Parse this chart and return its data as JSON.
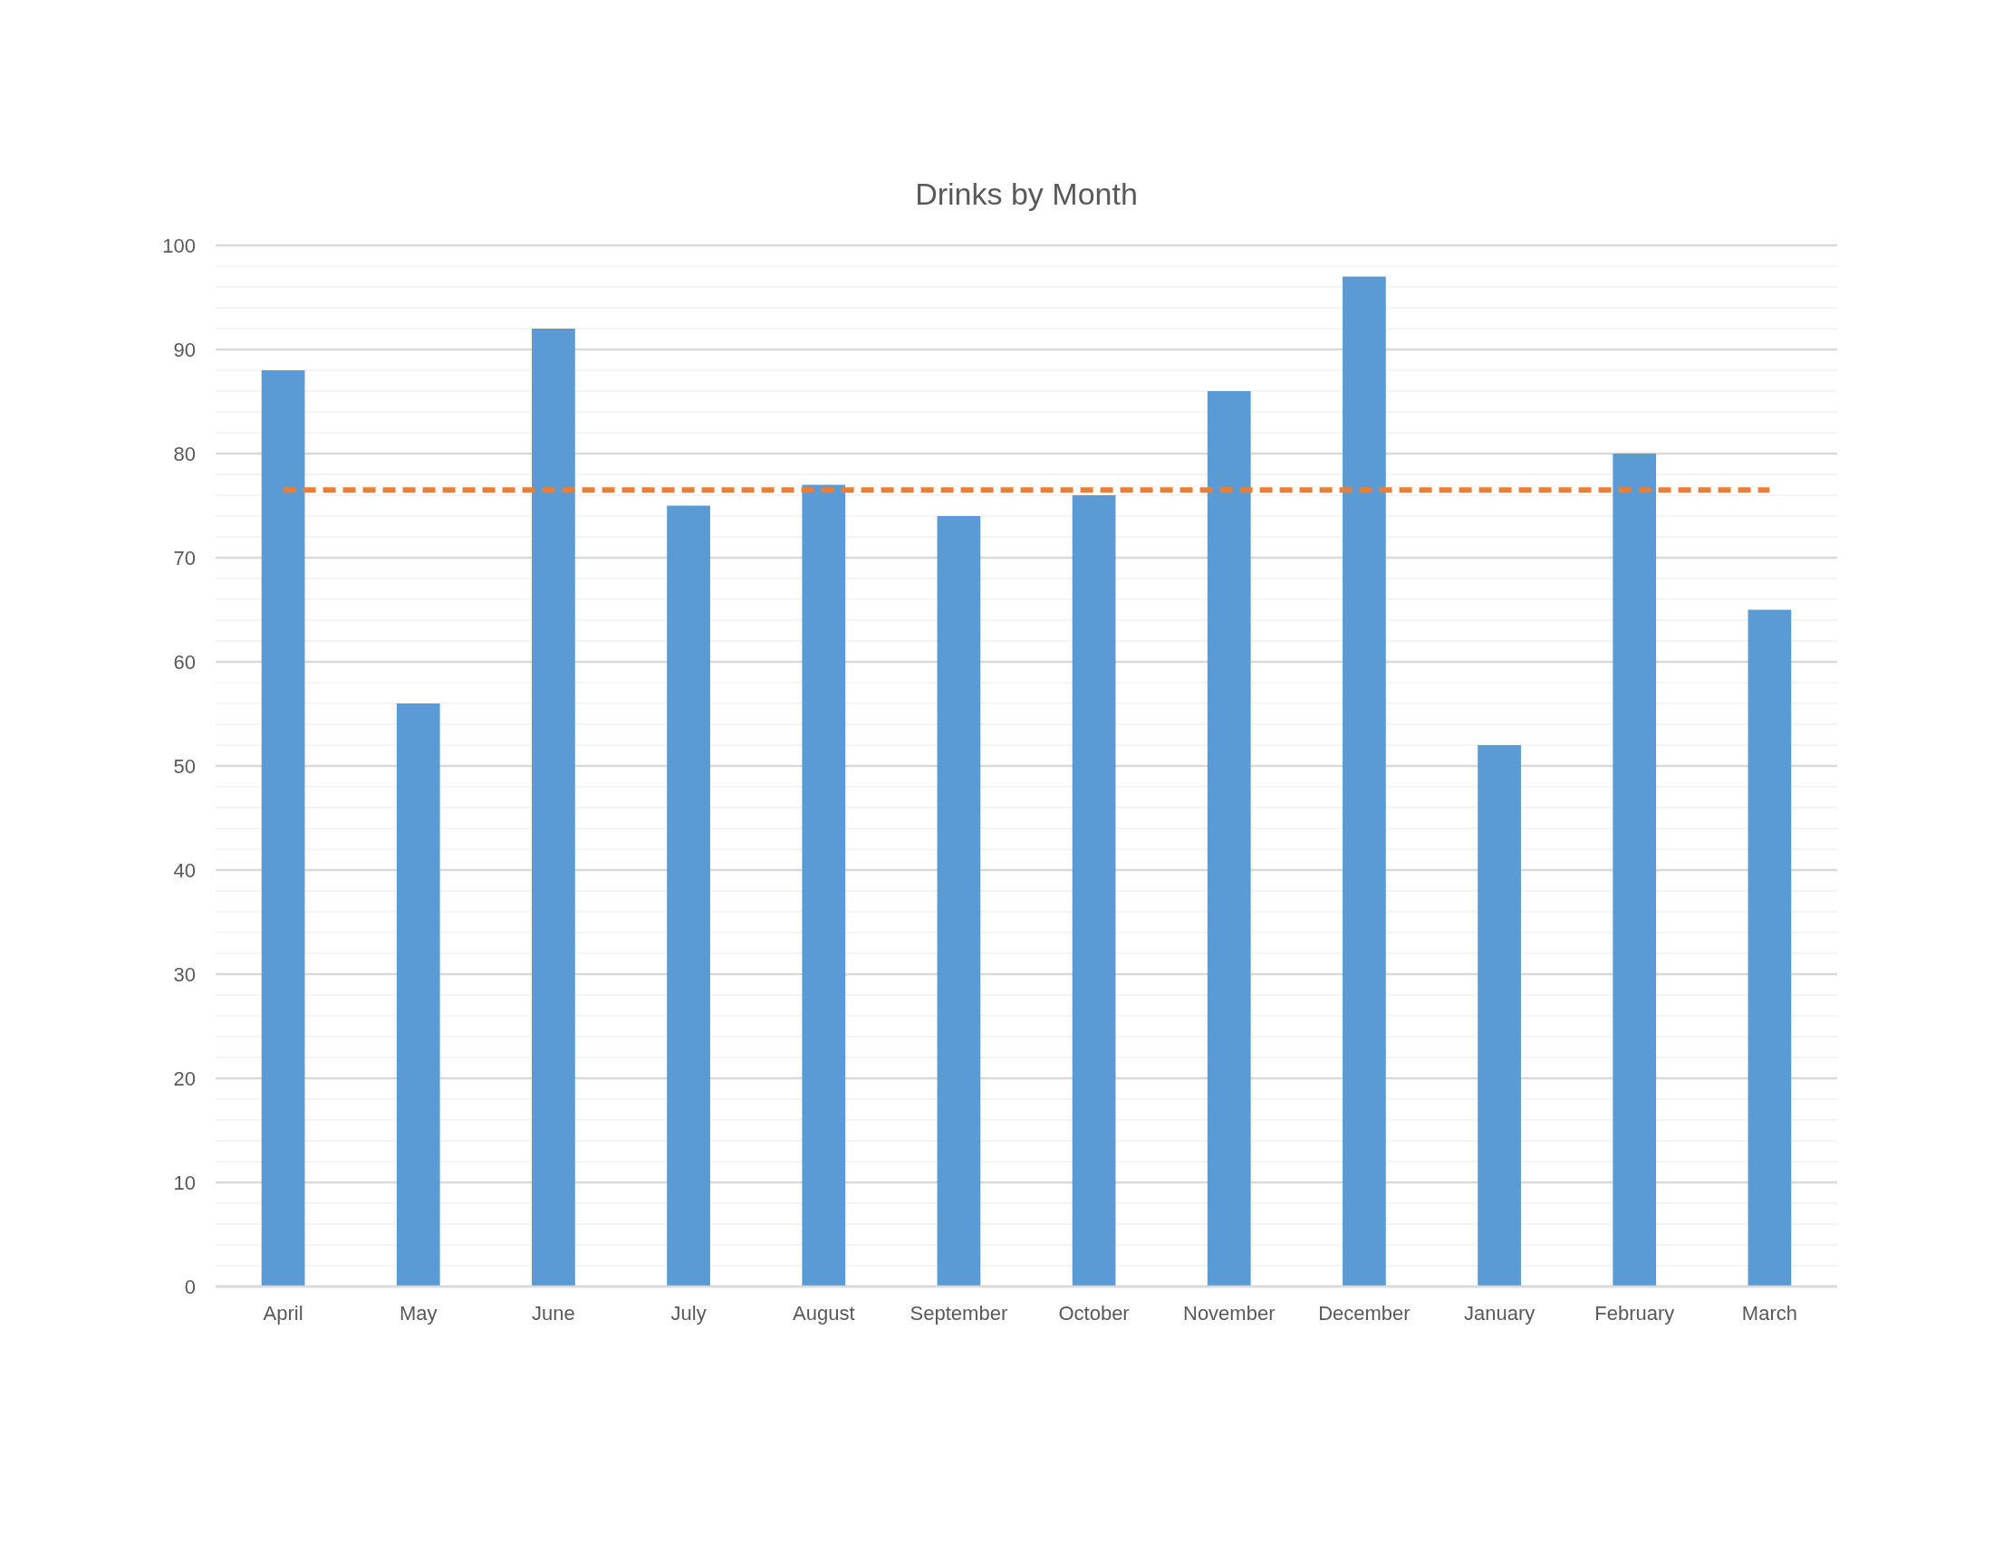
{
  "chart_data": {
    "type": "bar",
    "title": "Drinks by Month",
    "categories": [
      "April",
      "May",
      "June",
      "July",
      "August",
      "September",
      "October",
      "November",
      "December",
      "January",
      "February",
      "March"
    ],
    "series": [
      {
        "color": "#5b9bd5",
        "values": [
          88,
          56,
          92,
          75,
          77,
          74,
          76,
          86,
          97,
          52,
          80,
          65
        ]
      },
      {
        "type": "line",
        "color": "#ed7d31",
        "line_style": "dashed",
        "marker": "none",
        "values": [
          76.5,
          76.5,
          76.5,
          76.5,
          76.5,
          76.5,
          76.5,
          76.5,
          76.5,
          76.5,
          76.5,
          76.5
        ]
      }
    ],
    "ylim": [
      0,
      100
    ],
    "yticks": [
      0,
      {
        "value": 2,
        "label": null
      },
      {
        "value": 4,
        "label": null
      },
      {
        "value": 6,
        "label": null
      },
      {
        "value": 8,
        "label": null
      },
      10,
      {
        "value": 12,
        "label": null
      },
      {
        "value": 14,
        "label": null
      },
      {
        "value": 16,
        "label": null
      },
      {
        "value": 18,
        "label": null
      },
      20,
      {
        "value": 22,
        "label": null
      },
      {
        "value": 24,
        "label": null
      },
      {
        "value": 26,
        "label": null
      },
      {
        "value": 28,
        "label": null
      },
      30,
      {
        "value": 32,
        "label": null
      },
      {
        "value": 34,
        "label": null
      },
      {
        "value": 36,
        "label": null
      },
      {
        "value": 38,
        "label": null
      },
      40,
      {
        "value": 42,
        "label": null
      },
      {
        "value": 44,
        "label": null
      },
      {
        "value": 46,
        "label": null
      },
      {
        "value": 48,
        "label": null
      },
      50,
      {
        "value": 52,
        "label": null
      },
      {
        "value": 54,
        "label": null
      },
      {
        "value": 56,
        "label": null
      },
      {
        "value": 58,
        "label": null
      },
      60,
      {
        "value": 62,
        "label": null
      },
      {
        "value": 64,
        "label": null
      },
      {
        "value": 66,
        "label": null
      },
      {
        "value": 68,
        "label": null
      },
      70,
      {
        "value": 72,
        "label": null
      },
      {
        "value": 74,
        "label": null
      },
      {
        "value": 76,
        "label": null
      },
      {
        "value": 78,
        "label": null
      },
      80,
      {
        "value": 82,
        "label": null
      },
      {
        "value": 84,
        "label": null
      },
      {
        "value": 86,
        "label": null
      },
      {
        "value": 88,
        "label": null
      },
      90,
      {
        "value": 92,
        "label": null
      },
      {
        "value": 94,
        "label": null
      },
      {
        "value": 96,
        "label": null
      },
      {
        "value": 98,
        "label": null
      },
      100
    ],
    "grid": true
  }
}
